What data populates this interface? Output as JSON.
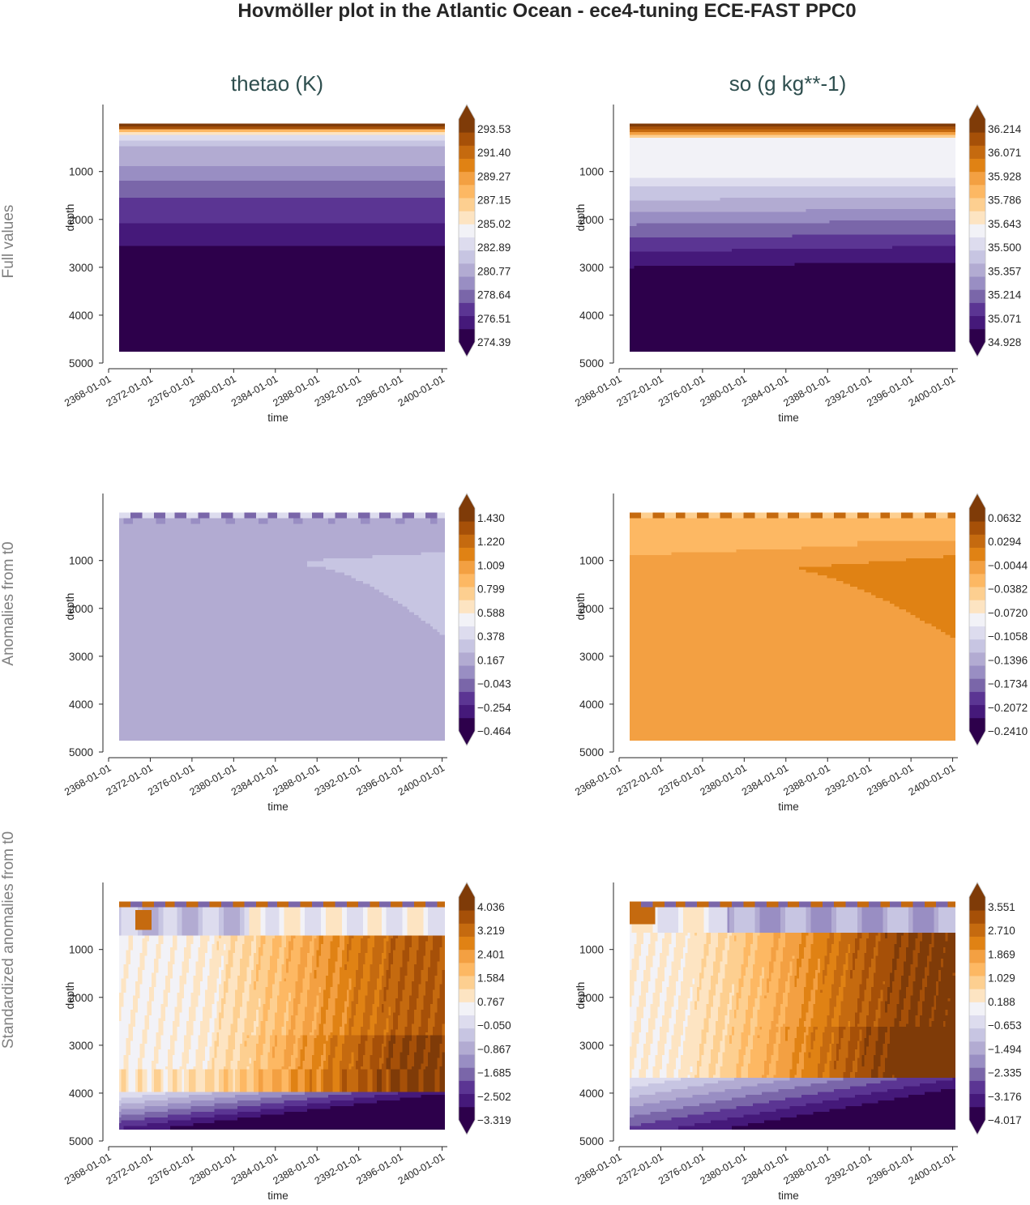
{
  "title": "Hovmöller plot in the Atlantic Ocean - ece4-tuning ECE-FAST PPC0",
  "columns": [
    "thetao (K)",
    "so (g kg**-1)"
  ],
  "rows": [
    "Full values",
    "Anomalies from t0",
    "Standardized anomalies from t0"
  ],
  "colors": {
    "palette": [
      "#2d004b",
      "#45197a",
      "#5b3593",
      "#7a66a9",
      "#998ec3",
      "#b2abd2",
      "#c7c5e2",
      "#dddcee",
      "#f2f2f7",
      "#fde4c2",
      "#fdcf90",
      "#fdb863",
      "#f3a042",
      "#e08214",
      "#c56a0f",
      "#a65008",
      "#7f3b08"
    ],
    "title_text": "#262626",
    "column_title": "#2f4f4f",
    "row_title": "#808080",
    "axis": "#262626"
  },
  "chart_data": [
    {
      "id": "thetao-full",
      "type": "heatmap",
      "row": 0,
      "col": 0,
      "xlabel": "time",
      "ylabel": "depth",
      "x_ticks": [
        "2368-01-01",
        "2372-01-01",
        "2376-01-01",
        "2380-01-01",
        "2384-01-01",
        "2388-01-01",
        "2392-01-01",
        "2396-01-01",
        "2400-01-01"
      ],
      "x_range": [
        2368,
        2400.5
      ],
      "data_x_range": [
        2369.0,
        2400.2
      ],
      "y_ticks": [
        1000,
        2000,
        3000,
        4000,
        5000
      ],
      "y_range": [
        5000,
        -400
      ],
      "data_y_range": [
        0,
        4750
      ],
      "colorbar_ticks": [
        "293.53",
        "291.40",
        "289.27",
        "287.15",
        "285.02",
        "282.89",
        "280.77",
        "278.64",
        "276.51",
        "274.39"
      ],
      "pattern": "full_theta"
    },
    {
      "id": "so-full",
      "type": "heatmap",
      "row": 0,
      "col": 1,
      "xlabel": "time",
      "ylabel": "depth",
      "x_ticks": [
        "2368-01-01",
        "2372-01-01",
        "2376-01-01",
        "2380-01-01",
        "2384-01-01",
        "2388-01-01",
        "2392-01-01",
        "2396-01-01",
        "2400-01-01"
      ],
      "x_range": [
        2368,
        2400.5
      ],
      "data_x_range": [
        2369.0,
        2400.2
      ],
      "y_ticks": [
        1000,
        2000,
        3000,
        4000,
        5000
      ],
      "y_range": [
        5000,
        -400
      ],
      "data_y_range": [
        0,
        4750
      ],
      "colorbar_ticks": [
        "36.214",
        "36.071",
        "35.928",
        "35.786",
        "35.643",
        "35.500",
        "35.357",
        "35.214",
        "35.071",
        "34.928"
      ],
      "pattern": "full_so"
    },
    {
      "id": "thetao-anom",
      "type": "heatmap",
      "row": 1,
      "col": 0,
      "xlabel": "time",
      "ylabel": "depth",
      "x_ticks": [
        "2368-01-01",
        "2372-01-01",
        "2376-01-01",
        "2380-01-01",
        "2384-01-01",
        "2388-01-01",
        "2392-01-01",
        "2396-01-01",
        "2400-01-01"
      ],
      "x_range": [
        2368,
        2400.5
      ],
      "data_x_range": [
        2369.0,
        2400.2
      ],
      "y_ticks": [
        1000,
        2000,
        3000,
        4000,
        5000
      ],
      "y_range": [
        5000,
        -400
      ],
      "data_y_range": [
        0,
        4750
      ],
      "colorbar_ticks": [
        "1.430",
        "1.220",
        "1.009",
        "0.799",
        "0.588",
        "0.378",
        "0.167",
        "−0.043",
        "−0.254",
        "−0.464"
      ],
      "pattern": "anom_theta"
    },
    {
      "id": "so-anom",
      "type": "heatmap",
      "row": 1,
      "col": 1,
      "xlabel": "time",
      "ylabel": "depth",
      "x_ticks": [
        "2368-01-01",
        "2372-01-01",
        "2376-01-01",
        "2380-01-01",
        "2384-01-01",
        "2388-01-01",
        "2392-01-01",
        "2396-01-01",
        "2400-01-01"
      ],
      "x_range": [
        2368,
        2400.5
      ],
      "data_x_range": [
        2369.0,
        2400.2
      ],
      "y_ticks": [
        1000,
        2000,
        3000,
        4000,
        5000
      ],
      "y_range": [
        5000,
        -400
      ],
      "data_y_range": [
        0,
        4750
      ],
      "colorbar_ticks": [
        "0.0632",
        "0.0294",
        "−0.0044",
        "−0.0382",
        "−0.0720",
        "−0.1058",
        "−0.1396",
        "−0.1734",
        "−0.2072",
        "−0.2410"
      ],
      "pattern": "anom_so"
    },
    {
      "id": "thetao-std",
      "type": "heatmap",
      "row": 2,
      "col": 0,
      "xlabel": "time",
      "ylabel": "depth",
      "x_ticks": [
        "2368-01-01",
        "2372-01-01",
        "2376-01-01",
        "2380-01-01",
        "2384-01-01",
        "2388-01-01",
        "2392-01-01",
        "2396-01-01",
        "2400-01-01"
      ],
      "x_range": [
        2368,
        2400.5
      ],
      "data_x_range": [
        2369.0,
        2400.2
      ],
      "y_ticks": [
        1000,
        2000,
        3000,
        4000,
        5000
      ],
      "y_range": [
        5000,
        -400
      ],
      "data_y_range": [
        0,
        4750
      ],
      "colorbar_ticks": [
        "4.036",
        "3.219",
        "2.401",
        "1.584",
        "0.767",
        "−0.050",
        "−0.867",
        "−1.685",
        "−2.502",
        "−3.319"
      ],
      "pattern": "std_theta"
    },
    {
      "id": "so-std",
      "type": "heatmap",
      "row": 2,
      "col": 1,
      "xlabel": "time",
      "ylabel": "depth",
      "x_ticks": [
        "2368-01-01",
        "2372-01-01",
        "2376-01-01",
        "2380-01-01",
        "2384-01-01",
        "2388-01-01",
        "2392-01-01",
        "2396-01-01",
        "2400-01-01"
      ],
      "x_range": [
        2368,
        2400.5
      ],
      "data_x_range": [
        2369.0,
        2400.2
      ],
      "y_ticks": [
        1000,
        2000,
        3000,
        4000,
        5000
      ],
      "y_range": [
        5000,
        -400
      ],
      "data_y_range": [
        0,
        4750
      ],
      "colorbar_ticks": [
        "3.551",
        "2.710",
        "1.869",
        "1.029",
        "0.188",
        "−0.653",
        "−1.494",
        "−2.335",
        "−3.176",
        "−4.017"
      ],
      "pattern": "std_so"
    }
  ]
}
